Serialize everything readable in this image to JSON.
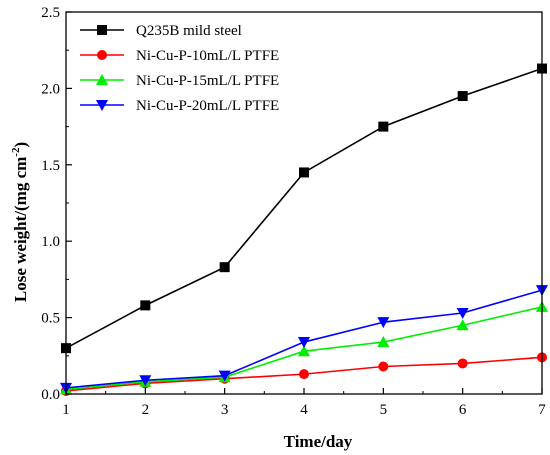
{
  "chart_data": {
    "type": "line",
    "title": "",
    "xlabel": "Time/day",
    "ylabel_main": "Lose weight/(mg  cm",
    "ylabel_sup": "-2",
    "ylabel_close": ")",
    "xlim": [
      1,
      7
    ],
    "ylim": [
      0,
      2.5
    ],
    "x_ticks": [
      "1",
      "2",
      "3",
      "4",
      "5",
      "6",
      "7"
    ],
    "y_ticks": [
      "0.0",
      "0.5",
      "1.0",
      "1.5",
      "2.0",
      "2.5"
    ],
    "grid": false,
    "legend_position": "top-left",
    "x": [
      1,
      2,
      3,
      4,
      5,
      6,
      7
    ],
    "series": [
      {
        "name": "Q235B mild steel",
        "color": "#000000",
        "marker": "square",
        "values": [
          0.3,
          0.58,
          0.83,
          1.45,
          1.75,
          1.95,
          2.13
        ]
      },
      {
        "name": "Ni-Cu-P-10mL/L PTFE",
        "color": "#ff0000",
        "marker": "circle",
        "values": [
          0.02,
          0.07,
          0.1,
          0.13,
          0.18,
          0.2,
          0.24
        ]
      },
      {
        "name": "Ni-Cu-P-15mL/L PTFE",
        "color": "#00ee00",
        "marker": "triangle-up",
        "values": [
          0.03,
          0.08,
          0.11,
          0.28,
          0.34,
          0.45,
          0.57
        ]
      },
      {
        "name": "Ni-Cu-P-20mL/L PTFE",
        "color": "#0000ff",
        "marker": "triangle-down",
        "values": [
          0.04,
          0.09,
          0.12,
          0.34,
          0.47,
          0.53,
          0.68
        ]
      }
    ]
  }
}
